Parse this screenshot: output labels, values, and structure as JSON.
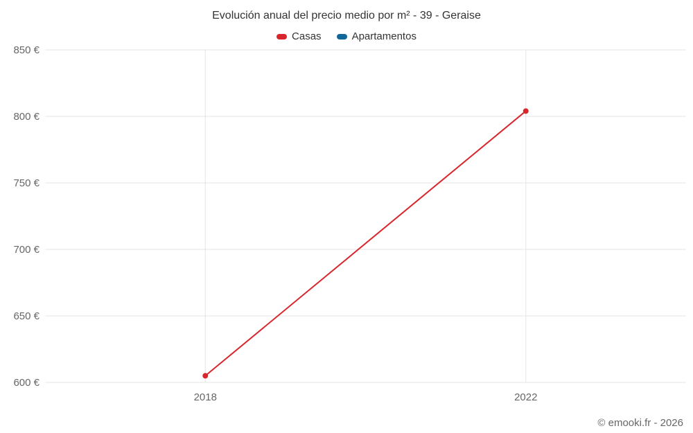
{
  "chart_data": {
    "type": "line",
    "title": "Evolución anual del precio medio por m² - 39 - Geraise",
    "categories": [
      "2018",
      "2022"
    ],
    "series": [
      {
        "name": "Casas",
        "color": "#d8262c",
        "values": [
          605,
          804
        ]
      },
      {
        "name": "Apartamentos",
        "color": "#10689a",
        "values": [
          null,
          null
        ]
      }
    ],
    "xlabel": "",
    "ylabel": "",
    "ylim": [
      600,
      850
    ],
    "ytick_step": 50,
    "ytick_suffix": " €",
    "grid": true,
    "legend_position": "top",
    "colors": {
      "grid_line": "#e6e6e6",
      "axis_label": "#666666",
      "title_text": "#333333"
    }
  },
  "footer": {
    "watermark": "© emooki.fr - 2026"
  }
}
